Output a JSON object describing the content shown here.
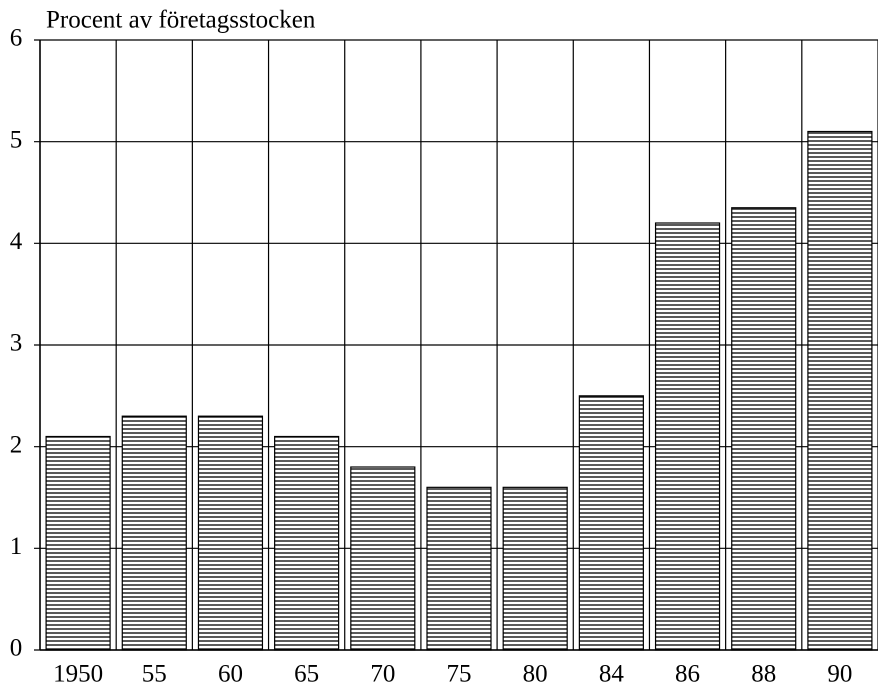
{
  "chart_data": {
    "type": "bar",
    "title": "Procent av företagsstocken",
    "categories": [
      "1950",
      "55",
      "60",
      "65",
      "70",
      "75",
      "80",
      "84",
      "86",
      "88",
      "90"
    ],
    "values": [
      2.1,
      2.3,
      2.3,
      2.1,
      1.8,
      1.6,
      1.6,
      2.5,
      4.2,
      4.35,
      5.1
    ],
    "color": "#000000",
    "ylim": [
      0,
      6
    ],
    "yticks": [
      0,
      1,
      2,
      3,
      4,
      5,
      6
    ],
    "grid": true
  }
}
